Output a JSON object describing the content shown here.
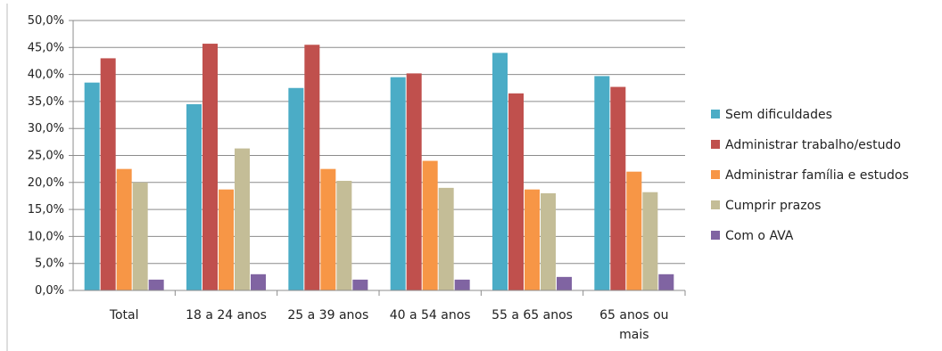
{
  "chart_data": {
    "type": "bar",
    "categories": [
      "Total",
      "18 a 24 anos",
      "25 a 39 anos",
      "40 a 54 anos",
      "55 a 65 anos",
      "65 anos ou mais"
    ],
    "category_lines": [
      [
        "Total"
      ],
      [
        "18 a 24 anos"
      ],
      [
        "25 a 39 anos"
      ],
      [
        "40 a 54 anos"
      ],
      [
        "55 a 65 anos"
      ],
      [
        "65 anos ou",
        "mais"
      ]
    ],
    "series": [
      {
        "name": "Sem dificuldades",
        "color": "#4BACC6",
        "values": [
          38.5,
          34.5,
          37.5,
          39.5,
          44.0,
          39.7
        ]
      },
      {
        "name": "Administrar  trabalho/estudo",
        "color": "#C0504D",
        "values": [
          43.0,
          45.7,
          45.5,
          40.2,
          36.5,
          37.7
        ]
      },
      {
        "name": "Administrar  família e estudos",
        "color": "#F79646",
        "values": [
          22.5,
          18.7,
          22.5,
          24.0,
          18.7,
          22.0
        ]
      },
      {
        "name": "Cumprir prazos",
        "color": "#C4BD97",
        "values": [
          20.0,
          26.3,
          20.3,
          19.0,
          18.0,
          18.2
        ]
      },
      {
        "name": "Com o AVA",
        "color": "#8064A2",
        "values": [
          2.0,
          3.0,
          2.0,
          2.0,
          2.5,
          3.0
        ]
      }
    ],
    "ylim": [
      0,
      50
    ],
    "yticks": [
      "0,0%",
      "5,0%",
      "10,0%",
      "15,0%",
      "20,0%",
      "25,0%",
      "30,0%",
      "35,0%",
      "40,0%",
      "45,0%",
      "50,0%"
    ],
    "grid": true,
    "legend_position": "right",
    "title": "",
    "xlabel": "",
    "ylabel": ""
  }
}
